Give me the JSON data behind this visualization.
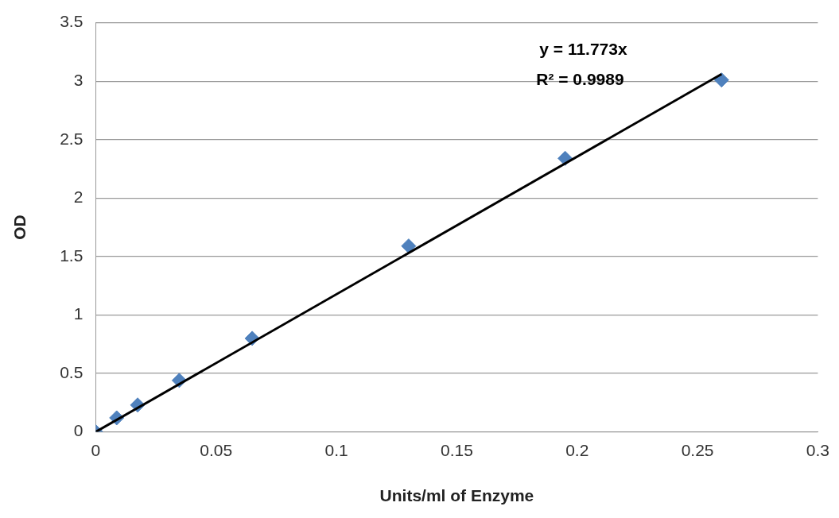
{
  "chart_data": {
    "type": "scatter",
    "xlabel": "Units/ml of Enzyme",
    "ylabel": "OD",
    "xlim": [
      0,
      0.3
    ],
    "xticks": [
      0,
      0.05,
      0.1,
      0.15,
      0.2,
      0.25,
      0.3
    ],
    "ylim": [
      0,
      3.5
    ],
    "yticks": [
      0,
      0.5,
      1,
      1.5,
      2,
      2.5,
      3,
      3.5
    ],
    "grid": "y",
    "legend": false,
    "marker": "diamond",
    "annotations": [
      "y = 11.773x",
      "R² = 0.9989"
    ],
    "series": [
      {
        "type": "scatter",
        "color": "#4f81bd",
        "x": [
          0,
          0.0087,
          0.0174,
          0.0347,
          0.065,
          0.13,
          0.195,
          0.26
        ],
        "values": [
          0,
          0.12,
          0.23,
          0.44,
          0.8,
          1.59,
          2.34,
          3.01
        ]
      },
      {
        "type": "line",
        "color": "#000000",
        "marker": "none",
        "x": [
          0,
          0.26
        ],
        "values": [
          0,
          3.061
        ]
      }
    ]
  }
}
